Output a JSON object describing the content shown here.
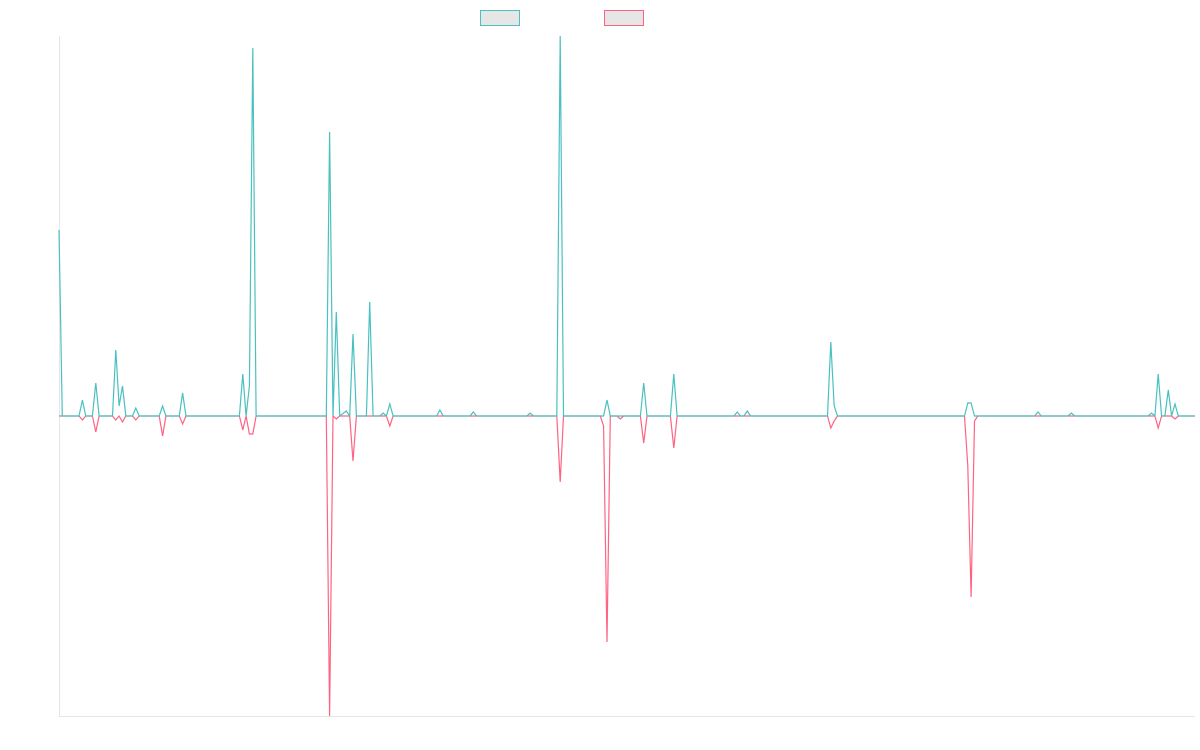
{
  "chart_data": {
    "type": "line",
    "title": "",
    "xlabel": "",
    "ylabel": "",
    "xlim": [
      0,
      340
    ],
    "ylim": [
      -300,
      380
    ],
    "grid": false,
    "legend": "top-center",
    "series": [
      {
        "name": "",
        "color": "#4bc0c0",
        "points": [
          [
            0,
            186
          ],
          [
            1,
            0
          ],
          [
            6,
            0
          ],
          [
            7,
            16
          ],
          [
            8,
            0
          ],
          [
            10,
            0
          ],
          [
            11,
            33
          ],
          [
            12,
            0
          ],
          [
            16,
            0
          ],
          [
            17,
            66
          ],
          [
            18,
            10
          ],
          [
            19,
            30
          ],
          [
            20,
            0
          ],
          [
            22,
            0
          ],
          [
            23,
            8
          ],
          [
            24,
            0
          ],
          [
            30,
            0
          ],
          [
            31,
            10
          ],
          [
            32,
            0
          ],
          [
            36,
            0
          ],
          [
            37,
            23
          ],
          [
            38,
            0
          ],
          [
            54,
            0
          ],
          [
            55,
            42
          ],
          [
            56,
            0
          ],
          [
            57,
            30
          ],
          [
            58,
            368
          ],
          [
            59,
            0
          ],
          [
            80,
            0
          ],
          [
            81,
            284
          ],
          [
            82,
            0
          ],
          [
            83,
            104
          ],
          [
            84,
            0
          ],
          [
            86,
            5
          ],
          [
            87,
            0
          ],
          [
            88,
            82
          ],
          [
            89,
            0
          ],
          [
            92,
            0
          ],
          [
            93,
            114
          ],
          [
            94,
            0
          ],
          [
            96,
            0
          ],
          [
            97,
            3
          ],
          [
            98,
            0
          ],
          [
            99,
            12
          ],
          [
            100,
            0
          ],
          [
            113,
            0
          ],
          [
            114,
            6
          ],
          [
            115,
            0
          ],
          [
            123,
            0
          ],
          [
            124,
            4
          ],
          [
            125,
            0
          ],
          [
            140,
            0
          ],
          [
            141,
            3
          ],
          [
            142,
            0
          ],
          [
            149,
            0
          ],
          [
            150,
            380
          ],
          [
            151,
            0
          ],
          [
            163,
            0
          ],
          [
            164,
            16
          ],
          [
            165,
            0
          ],
          [
            174,
            0
          ],
          [
            175,
            33
          ],
          [
            176,
            0
          ],
          [
            183,
            0
          ],
          [
            184,
            42
          ],
          [
            185,
            0
          ],
          [
            202,
            0
          ],
          [
            203,
            4
          ],
          [
            204,
            0
          ],
          [
            205,
            0
          ],
          [
            206,
            5
          ],
          [
            207,
            0
          ],
          [
            230,
            0
          ],
          [
            231,
            74
          ],
          [
            232,
            10
          ],
          [
            233,
            0
          ],
          [
            271,
            0
          ],
          [
            272,
            13
          ],
          [
            273,
            13
          ],
          [
            274,
            0
          ],
          [
            292,
            0
          ],
          [
            293,
            4
          ],
          [
            294,
            0
          ],
          [
            302,
            0
          ],
          [
            303,
            3
          ],
          [
            304,
            0
          ],
          [
            326,
            0
          ],
          [
            327,
            3
          ],
          [
            328,
            0
          ],
          [
            329,
            42
          ],
          [
            330,
            0
          ],
          [
            331,
            0
          ],
          [
            332,
            26
          ],
          [
            333,
            0
          ],
          [
            334,
            12
          ],
          [
            335,
            0
          ],
          [
            340,
            0
          ]
        ]
      },
      {
        "name": "",
        "color": "#ff6384",
        "points": [
          [
            0,
            0
          ],
          [
            6,
            0
          ],
          [
            7,
            -4
          ],
          [
            8,
            0
          ],
          [
            10,
            0
          ],
          [
            11,
            -16
          ],
          [
            12,
            0
          ],
          [
            16,
            0
          ],
          [
            17,
            -4
          ],
          [
            18,
            0
          ],
          [
            19,
            -6
          ],
          [
            20,
            0
          ],
          [
            22,
            0
          ],
          [
            23,
            -4
          ],
          [
            24,
            0
          ],
          [
            30,
            0
          ],
          [
            31,
            -20
          ],
          [
            32,
            0
          ],
          [
            36,
            0
          ],
          [
            37,
            -8
          ],
          [
            38,
            0
          ],
          [
            54,
            0
          ],
          [
            55,
            -14
          ],
          [
            56,
            0
          ],
          [
            57,
            -18
          ],
          [
            58,
            -18
          ],
          [
            59,
            0
          ],
          [
            80,
            0
          ],
          [
            81,
            -300
          ],
          [
            82,
            0
          ],
          [
            83,
            -3
          ],
          [
            84,
            0
          ],
          [
            87,
            0
          ],
          [
            88,
            -45
          ],
          [
            89,
            0
          ],
          [
            98,
            0
          ],
          [
            99,
            -10
          ],
          [
            100,
            0
          ],
          [
            149,
            0
          ],
          [
            150,
            -66
          ],
          [
            151,
            0
          ],
          [
            162,
            0
          ],
          [
            163,
            -10
          ],
          [
            164,
            -226
          ],
          [
            165,
            0
          ],
          [
            167,
            0
          ],
          [
            168,
            -3
          ],
          [
            169,
            0
          ],
          [
            174,
            0
          ],
          [
            175,
            -27
          ],
          [
            176,
            0
          ],
          [
            183,
            0
          ],
          [
            184,
            -32
          ],
          [
            185,
            0
          ],
          [
            230,
            0
          ],
          [
            231,
            -12
          ],
          [
            232,
            -5
          ],
          [
            233,
            0
          ],
          [
            271,
            0
          ],
          [
            272,
            -50
          ],
          [
            273,
            -181
          ],
          [
            274,
            -5
          ],
          [
            275,
            0
          ],
          [
            328,
            0
          ],
          [
            329,
            -12
          ],
          [
            330,
            0
          ],
          [
            333,
            0
          ],
          [
            334,
            -3
          ],
          [
            335,
            0
          ],
          [
            340,
            0
          ]
        ]
      }
    ]
  }
}
